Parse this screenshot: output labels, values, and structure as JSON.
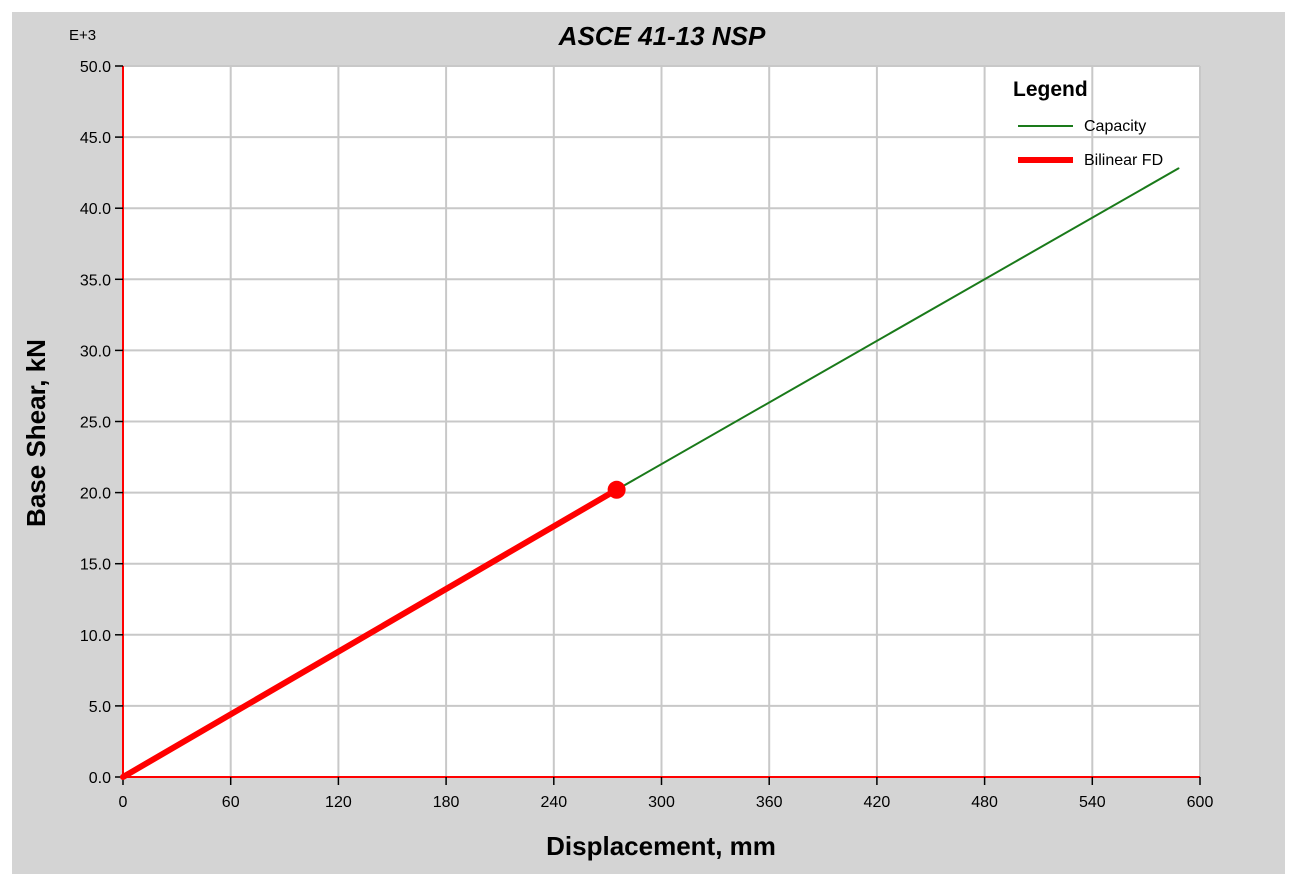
{
  "chart_data": {
    "type": "line",
    "title": "ASCE 41-13 NSP",
    "xlabel": "Displacement, mm",
    "ylabel": "Base Shear, kN",
    "y_multiplier_label": "E+3",
    "xlim": [
      0,
      600
    ],
    "ylim": [
      0,
      50
    ],
    "x_ticks": [
      0,
      60,
      120,
      180,
      240,
      300,
      360,
      420,
      480,
      540,
      600
    ],
    "y_ticks": [
      0,
      5,
      10,
      15,
      20,
      25,
      30,
      35,
      40,
      45,
      50
    ],
    "x_tick_labels": [
      "0",
      "60",
      "120",
      "180",
      "240",
      "300",
      "360",
      "420",
      "480",
      "540",
      "600"
    ],
    "y_tick_labels": [
      "0.0",
      "5.0",
      "10.0",
      "15.0",
      "20.0",
      "25.0",
      "30.0",
      "35.0",
      "40.0",
      "45.0",
      "50.0"
    ],
    "grid": true,
    "legend": {
      "title": "Legend",
      "position": "top-right"
    },
    "series": [
      {
        "name": "Capacity",
        "color": "#1a7a1a",
        "x": [
          0,
          275,
          588
        ],
        "y": [
          0,
          20.2,
          42.8
        ]
      },
      {
        "name": "Bilinear FD",
        "color": "#ff0000",
        "x": [
          0,
          275
        ],
        "y": [
          0,
          20.2
        ]
      }
    ],
    "marker": {
      "x": 275,
      "y": 20.2,
      "color": "#ff0000"
    }
  }
}
